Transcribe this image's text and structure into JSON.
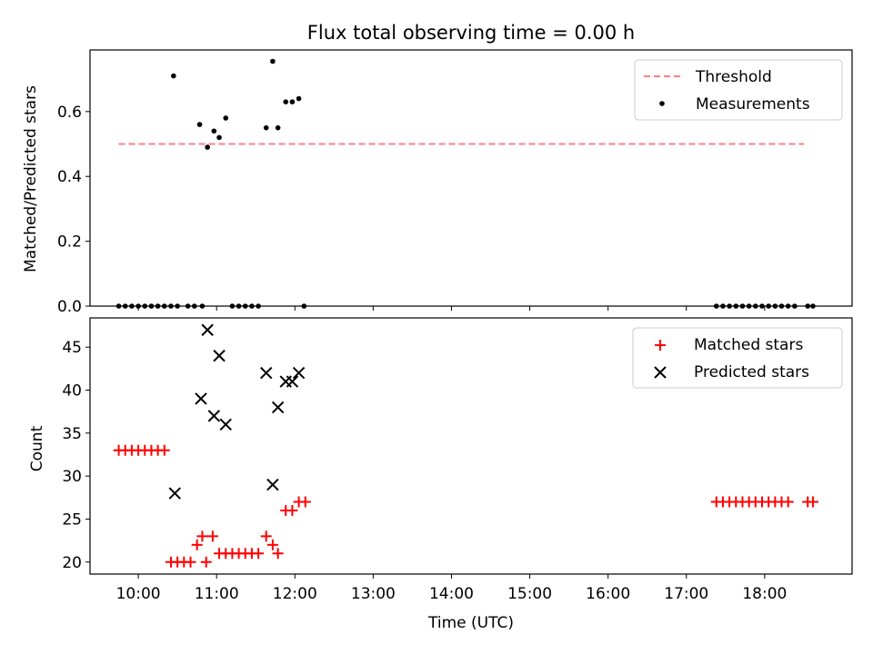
{
  "figure": {
    "title": "Flux total observing time = 0.00 h"
  },
  "colors": {
    "threshold": "#ff7f7f",
    "measurements": "#000000",
    "matched": "#ff0000",
    "predicted": "#000000",
    "axes": "#000000",
    "background": "#ffffff"
  },
  "chart_data": [
    {
      "type": "scatter",
      "title": "Flux total observing time = 0.00 h",
      "xlabel": "",
      "ylabel": "Matched/Predicted stars",
      "xlim": [
        "09:23",
        "19:07"
      ],
      "ylim": [
        0,
        0.79
      ],
      "y_ticks": [
        "0.0",
        "0.2",
        "0.4",
        "0.6"
      ],
      "y_tick_values": [
        0.0,
        0.2,
        0.4,
        0.6
      ],
      "x_ticks": [
        "10:00",
        "11:00",
        "12:00",
        "13:00",
        "14:00",
        "15:00",
        "16:00",
        "17:00",
        "18:00"
      ],
      "x_tick_labels_shown": false,
      "legend_position": "top-right",
      "grid": false,
      "series": [
        {
          "name": "Threshold",
          "kind": "dashed-line",
          "x": [
            "09:45",
            "18:30"
          ],
          "y": [
            0.5,
            0.5
          ]
        },
        {
          "name": "Measurements",
          "kind": "dots",
          "x": [
            "09:45",
            "09:50",
            "09:55",
            "10:00",
            "10:05",
            "10:10",
            "10:15",
            "10:20",
            "10:25",
            "10:30",
            "10:27",
            "10:38",
            "10:43",
            "10:49",
            "10:47",
            "10:53",
            "10:58",
            "11:02",
            "11:07",
            "11:12",
            "11:17",
            "11:22",
            "11:27",
            "11:32",
            "11:38",
            "11:43",
            "11:47",
            "11:53",
            "11:58",
            "12:03",
            "12:07",
            "17:23",
            "17:28",
            "17:33",
            "17:38",
            "17:43",
            "17:48",
            "17:53",
            "17:58",
            "18:03",
            "18:08",
            "18:13",
            "18:18",
            "18:23",
            "18:33",
            "18:37"
          ],
          "y": [
            0,
            0,
            0,
            0,
            0,
            0,
            0,
            0,
            0,
            0,
            0.71,
            0,
            0,
            0,
            0.56,
            0.49,
            0.54,
            0.52,
            0.58,
            0,
            0,
            0,
            0,
            0,
            0.55,
            0.755,
            0.55,
            0.63,
            0.63,
            0.64,
            0,
            0,
            0,
            0,
            0,
            0,
            0,
            0,
            0,
            0,
            0,
            0,
            0,
            0,
            0,
            0
          ]
        }
      ]
    },
    {
      "type": "scatter",
      "title": "",
      "xlabel": "Time (UTC)",
      "ylabel": "Count",
      "xlim": [
        "09:23",
        "19:07"
      ],
      "ylim": [
        18.6,
        48.4
      ],
      "y_ticks": [
        "20",
        "25",
        "30",
        "35",
        "40",
        "45"
      ],
      "y_tick_values": [
        20,
        25,
        30,
        35,
        40,
        45
      ],
      "x_ticks": [
        "10:00",
        "11:00",
        "12:00",
        "13:00",
        "14:00",
        "15:00",
        "16:00",
        "17:00",
        "18:00"
      ],
      "legend_position": "top-right",
      "grid": false,
      "series": [
        {
          "name": "Matched stars",
          "marker": "plus",
          "x": [
            "09:45",
            "09:50",
            "09:55",
            "10:00",
            "10:05",
            "10:10",
            "10:15",
            "10:20",
            "10:25",
            "10:30",
            "10:35",
            "10:40",
            "10:45",
            "10:49",
            "10:52",
            "10:57",
            "11:02",
            "11:07",
            "11:12",
            "11:17",
            "11:22",
            "11:27",
            "11:32",
            "11:38",
            "11:43",
            "11:47",
            "11:53",
            "11:58",
            "12:03",
            "12:08",
            "17:23",
            "17:28",
            "17:33",
            "17:38",
            "17:43",
            "17:48",
            "17:53",
            "17:58",
            "18:03",
            "18:08",
            "18:13",
            "18:18",
            "18:33",
            "18:37"
          ],
          "y": [
            33,
            33,
            33,
            33,
            33,
            33,
            33,
            33,
            20,
            20,
            20,
            20,
            22,
            23,
            20,
            23,
            21,
            21,
            21,
            21,
            21,
            21,
            21,
            23,
            22,
            21,
            26,
            26,
            27,
            27,
            27,
            27,
            27,
            27,
            27,
            27,
            27,
            27,
            27,
            27,
            27,
            27,
            27,
            27
          ]
        },
        {
          "name": "Predicted stars",
          "marker": "x",
          "x": [
            "10:28",
            "10:48",
            "10:53",
            "10:58",
            "11:02",
            "11:07",
            "11:38",
            "11:43",
            "11:47",
            "11:53",
            "11:58",
            "12:03"
          ],
          "y": [
            28,
            39,
            47,
            37,
            44,
            36,
            42,
            29,
            38,
            41,
            41,
            42
          ]
        }
      ]
    }
  ]
}
